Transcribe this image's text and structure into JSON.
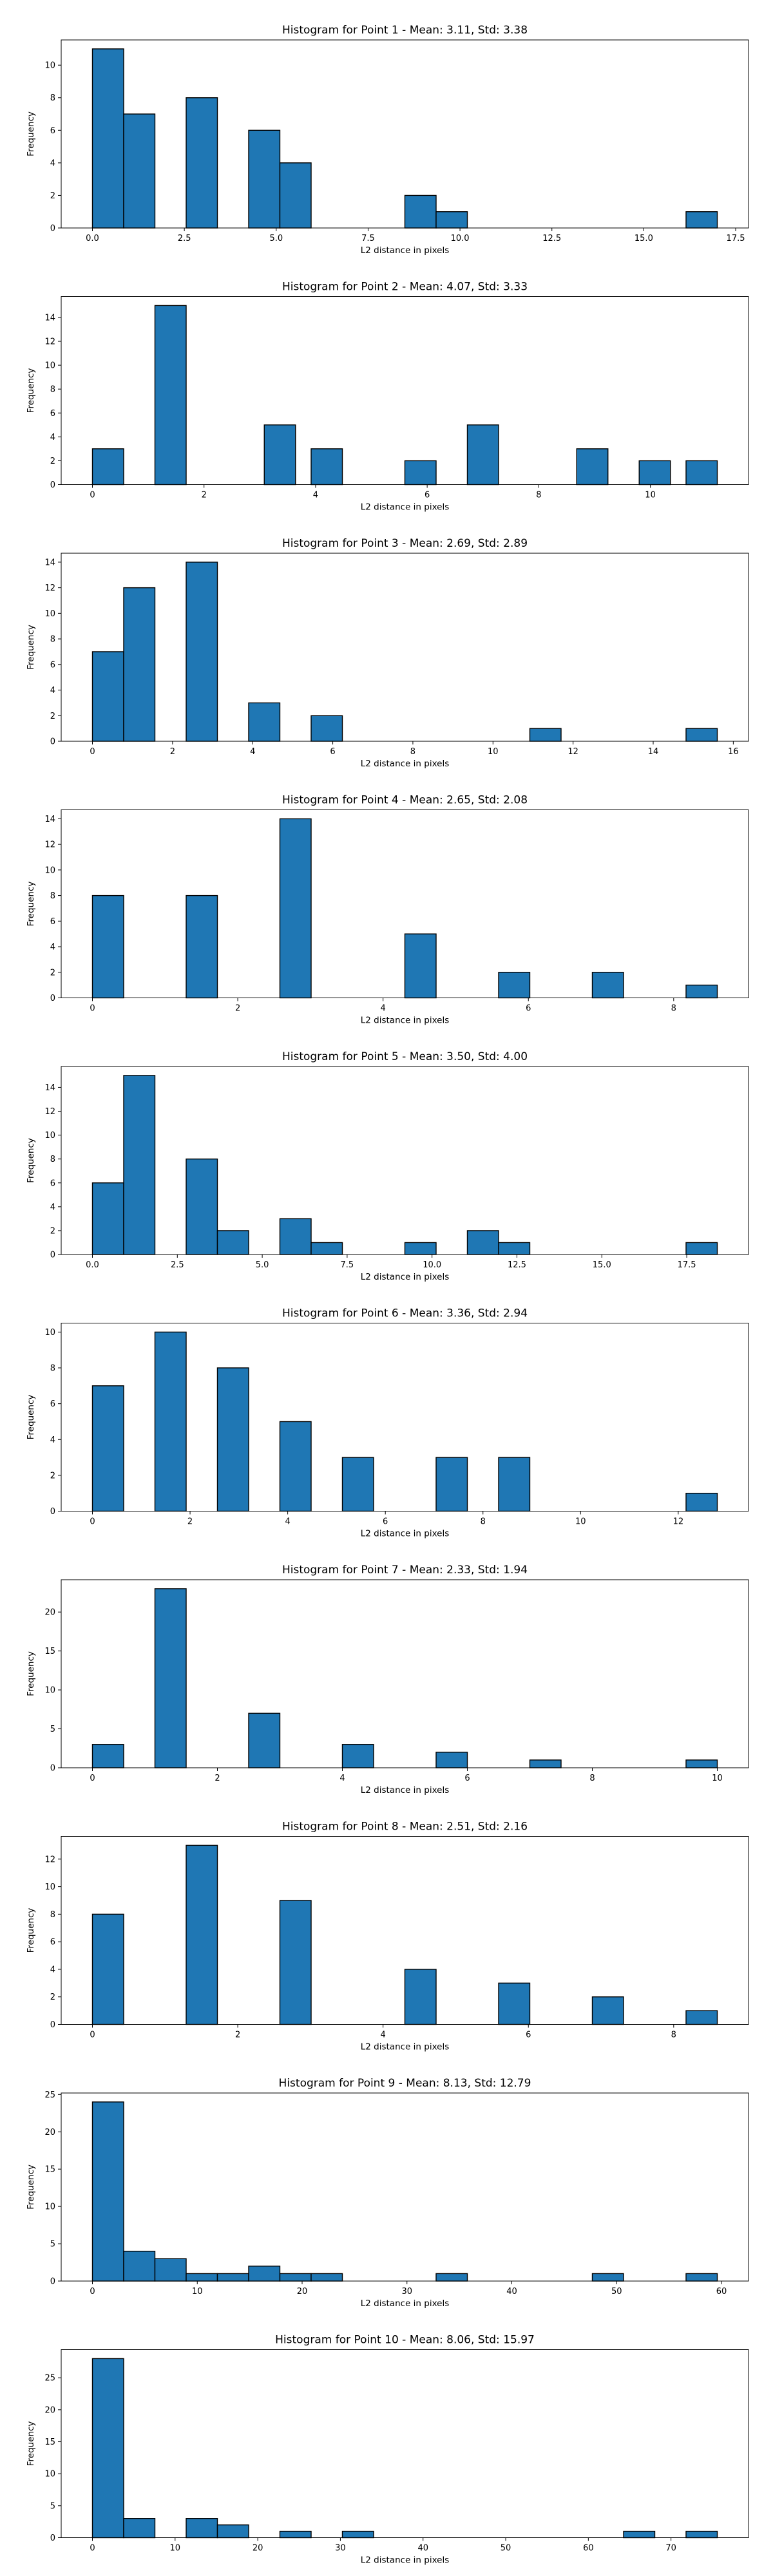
{
  "chart_data": [
    {
      "type": "bar",
      "title": "Histogram for Point 1 - Mean: 3.11, Std: 3.38",
      "xlabel": "L2 distance in pixels",
      "ylabel": "Frequency",
      "xlim": [
        -0.85,
        17.85
      ],
      "ylim": [
        0,
        11.55
      ],
      "xticks": [
        0.0,
        2.5,
        5.0,
        7.5,
        10.0,
        12.5,
        15.0,
        17.5
      ],
      "xtick_labels": [
        "0.0",
        "2.5",
        "5.0",
        "7.5",
        "10.0",
        "12.5",
        "15.0",
        "17.5"
      ],
      "yticks": [
        0,
        2,
        4,
        6,
        8,
        10
      ],
      "bins": [
        {
          "x0": 0.0,
          "x1": 0.85,
          "count": 11
        },
        {
          "x0": 0.85,
          "x1": 1.7,
          "count": 7
        },
        {
          "x0": 2.55,
          "x1": 3.4,
          "count": 8
        },
        {
          "x0": 4.25,
          "x1": 5.1,
          "count": 6
        },
        {
          "x0": 5.1,
          "x1": 5.95,
          "count": 4
        },
        {
          "x0": 8.5,
          "x1": 9.35,
          "count": 2
        },
        {
          "x0": 9.35,
          "x1": 10.2,
          "count": 1
        },
        {
          "x0": 16.15,
          "x1": 17.0,
          "count": 1
        }
      ]
    },
    {
      "type": "bar",
      "title": "Histogram for Point 2 - Mean: 4.07, Std: 3.33",
      "xlabel": "L2 distance in pixels",
      "ylabel": "Frequency",
      "xlim": [
        -0.56,
        11.76
      ],
      "ylim": [
        0,
        15.75
      ],
      "xticks": [
        0,
        2,
        4,
        6,
        8,
        10
      ],
      "xtick_labels": [
        "0",
        "2",
        "4",
        "6",
        "8",
        "10"
      ],
      "yticks": [
        0,
        2,
        4,
        6,
        8,
        10,
        12,
        14
      ],
      "bins": [
        {
          "x0": 0.0,
          "x1": 0.56,
          "count": 3
        },
        {
          "x0": 1.12,
          "x1": 1.68,
          "count": 15
        },
        {
          "x0": 3.08,
          "x1": 3.64,
          "count": 5
        },
        {
          "x0": 3.92,
          "x1": 4.48,
          "count": 3
        },
        {
          "x0": 5.6,
          "x1": 6.16,
          "count": 2
        },
        {
          "x0": 6.72,
          "x1": 7.28,
          "count": 5
        },
        {
          "x0": 8.68,
          "x1": 9.24,
          "count": 3
        },
        {
          "x0": 9.8,
          "x1": 10.36,
          "count": 2
        },
        {
          "x0": 10.64,
          "x1": 11.2,
          "count": 2
        }
      ]
    },
    {
      "type": "bar",
      "title": "Histogram for Point 3 - Mean: 2.69, Std: 2.89",
      "xlabel": "L2 distance in pixels",
      "ylabel": "Frequency",
      "xlim": [
        -0.78,
        16.38
      ],
      "ylim": [
        0,
        14.7
      ],
      "xticks": [
        0,
        2,
        4,
        6,
        8,
        10,
        12,
        14,
        16
      ],
      "xtick_labels": [
        "0",
        "2",
        "4",
        "6",
        "8",
        "10",
        "12",
        "14",
        "16"
      ],
      "yticks": [
        0,
        2,
        4,
        6,
        8,
        10,
        12,
        14
      ],
      "bins": [
        {
          "x0": 0.0,
          "x1": 0.78,
          "count": 7
        },
        {
          "x0": 0.78,
          "x1": 1.56,
          "count": 12
        },
        {
          "x0": 2.34,
          "x1": 3.12,
          "count": 14
        },
        {
          "x0": 3.9,
          "x1": 4.68,
          "count": 3
        },
        {
          "x0": 5.46,
          "x1": 6.24,
          "count": 2
        },
        {
          "x0": 10.92,
          "x1": 11.7,
          "count": 1
        },
        {
          "x0": 14.82,
          "x1": 15.6,
          "count": 1
        }
      ]
    },
    {
      "type": "bar",
      "title": "Histogram for Point 4 - Mean: 2.65, Std: 2.08",
      "xlabel": "L2 distance in pixels",
      "ylabel": "Frequency",
      "xlim": [
        -0.43,
        9.03
      ],
      "ylim": [
        0,
        14.7
      ],
      "xticks": [
        0,
        2,
        4,
        6,
        8
      ],
      "xtick_labels": [
        "0",
        "2",
        "4",
        "6",
        "8"
      ],
      "yticks": [
        0,
        2,
        4,
        6,
        8,
        10,
        12,
        14
      ],
      "bins": [
        {
          "x0": 0.0,
          "x1": 0.43,
          "count": 8
        },
        {
          "x0": 1.29,
          "x1": 1.72,
          "count": 8
        },
        {
          "x0": 2.58,
          "x1": 3.01,
          "count": 14
        },
        {
          "x0": 4.3,
          "x1": 4.73,
          "count": 5
        },
        {
          "x0": 5.59,
          "x1": 6.02,
          "count": 2
        },
        {
          "x0": 6.88,
          "x1": 7.31,
          "count": 2
        },
        {
          "x0": 8.17,
          "x1": 8.6,
          "count": 1
        }
      ]
    },
    {
      "type": "bar",
      "title": "Histogram for Point 5 - Mean: 3.50, Std: 4.00",
      "xlabel": "L2 distance in pixels",
      "ylabel": "Frequency",
      "xlim": [
        -0.92,
        19.32
      ],
      "ylim": [
        0,
        15.75
      ],
      "xticks": [
        0.0,
        2.5,
        5.0,
        7.5,
        10.0,
        12.5,
        15.0,
        17.5
      ],
      "xtick_labels": [
        "0.0",
        "2.5",
        "5.0",
        "7.5",
        "10.0",
        "12.5",
        "15.0",
        "17.5"
      ],
      "yticks": [
        0,
        2,
        4,
        6,
        8,
        10,
        12,
        14
      ],
      "bins": [
        {
          "x0": 0.0,
          "x1": 0.92,
          "count": 6
        },
        {
          "x0": 0.92,
          "x1": 1.84,
          "count": 15
        },
        {
          "x0": 2.76,
          "x1": 3.68,
          "count": 8
        },
        {
          "x0": 3.68,
          "x1": 4.6,
          "count": 2
        },
        {
          "x0": 5.52,
          "x1": 6.44,
          "count": 3
        },
        {
          "x0": 6.44,
          "x1": 7.36,
          "count": 1
        },
        {
          "x0": 9.2,
          "x1": 10.12,
          "count": 1
        },
        {
          "x0": 11.04,
          "x1": 11.96,
          "count": 2
        },
        {
          "x0": 11.96,
          "x1": 12.88,
          "count": 1
        },
        {
          "x0": 17.48,
          "x1": 18.4,
          "count": 1
        }
      ]
    },
    {
      "type": "bar",
      "title": "Histogram for Point 6 - Mean: 3.36, Std: 2.94",
      "xlabel": "L2 distance in pixels",
      "ylabel": "Frequency",
      "xlim": [
        -0.64,
        13.44
      ],
      "ylim": [
        0,
        10.5
      ],
      "xticks": [
        0,
        2,
        4,
        6,
        8,
        10,
        12
      ],
      "xtick_labels": [
        "0",
        "2",
        "4",
        "6",
        "8",
        "10",
        "12"
      ],
      "yticks": [
        0,
        2,
        4,
        6,
        8,
        10
      ],
      "bins": [
        {
          "x0": 0.0,
          "x1": 0.64,
          "count": 7
        },
        {
          "x0": 1.28,
          "x1": 1.92,
          "count": 10
        },
        {
          "x0": 2.56,
          "x1": 3.2,
          "count": 8
        },
        {
          "x0": 3.84,
          "x1": 4.48,
          "count": 5
        },
        {
          "x0": 5.12,
          "x1": 5.76,
          "count": 3
        },
        {
          "x0": 7.04,
          "x1": 7.68,
          "count": 3
        },
        {
          "x0": 8.32,
          "x1": 8.96,
          "count": 3
        },
        {
          "x0": 12.16,
          "x1": 12.8,
          "count": 1
        }
      ]
    },
    {
      "type": "bar",
      "title": "Histogram for Point 7 - Mean: 2.33, Std: 1.94",
      "xlabel": "L2 distance in pixels",
      "ylabel": "Frequency",
      "xlim": [
        -0.5,
        10.5
      ],
      "ylim": [
        0,
        24.15
      ],
      "xticks": [
        0,
        2,
        4,
        6,
        8,
        10
      ],
      "xtick_labels": [
        "0",
        "2",
        "4",
        "6",
        "8",
        "10"
      ],
      "yticks": [
        0,
        5,
        10,
        15,
        20
      ],
      "bins": [
        {
          "x0": 0.0,
          "x1": 0.5,
          "count": 3
        },
        {
          "x0": 1.0,
          "x1": 1.5,
          "count": 23
        },
        {
          "x0": 2.5,
          "x1": 3.0,
          "count": 7
        },
        {
          "x0": 4.0,
          "x1": 4.5,
          "count": 3
        },
        {
          "x0": 5.5,
          "x1": 6.0,
          "count": 2
        },
        {
          "x0": 7.0,
          "x1": 7.5,
          "count": 1
        },
        {
          "x0": 9.5,
          "x1": 10.0,
          "count": 1
        }
      ]
    },
    {
      "type": "bar",
      "title": "Histogram for Point 8 - Mean: 2.51, Std: 2.16",
      "xlabel": "L2 distance in pixels",
      "ylabel": "Frequency",
      "xlim": [
        -0.43,
        9.03
      ],
      "ylim": [
        0,
        13.65
      ],
      "xticks": [
        0,
        2,
        4,
        6,
        8
      ],
      "xtick_labels": [
        "0",
        "2",
        "4",
        "6",
        "8"
      ],
      "yticks": [
        0,
        2,
        4,
        6,
        8,
        10,
        12
      ],
      "bins": [
        {
          "x0": 0.0,
          "x1": 0.43,
          "count": 8
        },
        {
          "x0": 1.29,
          "x1": 1.72,
          "count": 13
        },
        {
          "x0": 2.58,
          "x1": 3.01,
          "count": 9
        },
        {
          "x0": 4.3,
          "x1": 4.73,
          "count": 4
        },
        {
          "x0": 5.59,
          "x1": 6.02,
          "count": 3
        },
        {
          "x0": 6.88,
          "x1": 7.31,
          "count": 2
        },
        {
          "x0": 8.17,
          "x1": 8.6,
          "count": 1
        }
      ]
    },
    {
      "type": "bar",
      "title": "Histogram for Point 9 - Mean: 8.13, Std: 12.79",
      "xlabel": "L2 distance in pixels",
      "ylabel": "Frequency",
      "xlim": [
        -2.98,
        62.58
      ],
      "ylim": [
        0,
        25.2
      ],
      "xticks": [
        0,
        10,
        20,
        30,
        40,
        50,
        60
      ],
      "xtick_labels": [
        "0",
        "10",
        "20",
        "30",
        "40",
        "50",
        "60"
      ],
      "yticks": [
        0,
        5,
        10,
        15,
        20,
        25
      ],
      "bins": [
        {
          "x0": 0.0,
          "x1": 2.98,
          "count": 24
        },
        {
          "x0": 2.98,
          "x1": 5.96,
          "count": 4
        },
        {
          "x0": 5.96,
          "x1": 8.94,
          "count": 3
        },
        {
          "x0": 8.94,
          "x1": 11.92,
          "count": 1
        },
        {
          "x0": 11.92,
          "x1": 14.9,
          "count": 1
        },
        {
          "x0": 14.9,
          "x1": 17.88,
          "count": 2
        },
        {
          "x0": 17.88,
          "x1": 20.86,
          "count": 1
        },
        {
          "x0": 20.86,
          "x1": 23.84,
          "count": 1
        },
        {
          "x0": 32.78,
          "x1": 35.76,
          "count": 1
        },
        {
          "x0": 47.68,
          "x1": 50.66,
          "count": 1
        },
        {
          "x0": 56.62,
          "x1": 59.6,
          "count": 1
        }
      ]
    },
    {
      "type": "bar",
      "title": "Histogram for Point 10 - Mean: 8.06, Std: 15.97",
      "xlabel": "L2 distance in pixels",
      "ylabel": "Frequency",
      "xlim": [
        -3.78,
        79.38
      ],
      "ylim": [
        0,
        29.4
      ],
      "xticks": [
        0,
        10,
        20,
        30,
        40,
        50,
        60,
        70
      ],
      "xtick_labels": [
        "0",
        "10",
        "20",
        "30",
        "40",
        "50",
        "60",
        "70"
      ],
      "yticks": [
        0,
        5,
        10,
        15,
        20,
        25
      ],
      "bins": [
        {
          "x0": 0.0,
          "x1": 3.78,
          "count": 28
        },
        {
          "x0": 3.78,
          "x1": 7.56,
          "count": 3
        },
        {
          "x0": 11.34,
          "x1": 15.12,
          "count": 3
        },
        {
          "x0": 15.12,
          "x1": 18.9,
          "count": 2
        },
        {
          "x0": 22.68,
          "x1": 26.46,
          "count": 1
        },
        {
          "x0": 30.24,
          "x1": 34.02,
          "count": 1
        },
        {
          "x0": 64.26,
          "x1": 68.04,
          "count": 1
        },
        {
          "x0": 71.82,
          "x1": 75.6,
          "count": 1
        }
      ]
    }
  ]
}
